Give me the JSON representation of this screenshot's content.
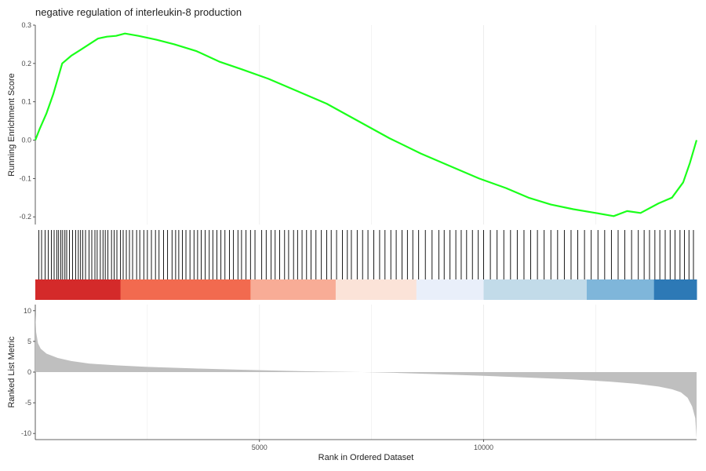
{
  "chart_data": {
    "type": "line",
    "title": "negative regulation of interleukin-8 production",
    "xlabel": "Rank in Ordered Dataset",
    "xlim": [
      0,
      14750
    ],
    "x_ticks": [
      5000,
      10000
    ],
    "grid": "vertical",
    "top_panel": {
      "ylabel": "Running Enrichment Score",
      "ylim": [
        -0.22,
        0.3
      ],
      "y_ticks": [
        0.3,
        0.2,
        0.1,
        0.0,
        -0.1,
        -0.2
      ],
      "y_tick_labels": [
        "0.3",
        "0.2",
        "0.1",
        "0.0",
        "-0.1",
        "-0.2"
      ],
      "line_color": "#1aff1a",
      "x": [
        0,
        100,
        250,
        400,
        600,
        800,
        1000,
        1200,
        1400,
        1600,
        1800,
        2000,
        2300,
        2700,
        3100,
        3600,
        4100,
        4600,
        5200,
        5800,
        6500,
        7200,
        7900,
        8600,
        9300,
        9900,
        10500,
        11000,
        11500,
        12000,
        12500,
        12900,
        13200,
        13500,
        13900,
        14200,
        14450,
        14600,
        14750
      ],
      "y": [
        0.0,
        0.03,
        0.07,
        0.12,
        0.2,
        0.22,
        0.235,
        0.25,
        0.265,
        0.27,
        0.272,
        0.278,
        0.272,
        0.262,
        0.25,
        0.232,
        0.205,
        0.185,
        0.16,
        0.13,
        0.095,
        0.05,
        0.005,
        -0.035,
        -0.07,
        -0.1,
        -0.125,
        -0.15,
        -0.168,
        -0.18,
        -0.19,
        -0.198,
        -0.185,
        -0.19,
        -0.165,
        -0.15,
        -0.11,
        -0.06,
        0.0
      ]
    },
    "gene_hits": {
      "bar_color": "#000000",
      "positions": [
        80,
        140,
        220,
        290,
        360,
        420,
        480,
        520,
        570,
        610,
        660,
        700,
        760,
        830,
        900,
        960,
        1010,
        1060,
        1120,
        1200,
        1260,
        1330,
        1380,
        1450,
        1510,
        1560,
        1620,
        1700,
        1760,
        1820,
        1900,
        1960,
        2030,
        2100,
        2170,
        2260,
        2330,
        2420,
        2500,
        2590,
        2680,
        2760,
        2860,
        2950,
        3050,
        3130,
        3200,
        3280,
        3360,
        3450,
        3540,
        3620,
        3700,
        3790,
        3880,
        3960,
        4050,
        4140,
        4230,
        4330,
        4420,
        4520,
        4600,
        4700,
        4800,
        4900,
        5050,
        5150,
        5260,
        5350,
        5450,
        5560,
        5650,
        5760,
        5850,
        5950,
        6050,
        6150,
        6260,
        6380,
        6500,
        6600,
        6720,
        6850,
        6960,
        7050,
        7180,
        7300,
        7420,
        7550,
        7680,
        7800,
        7930,
        8050,
        8180,
        8300,
        8420,
        8550,
        8700,
        8850,
        9000,
        9120,
        9250,
        9380,
        9500,
        9620,
        9750,
        9880,
        10000,
        10150,
        10300,
        10450,
        10600,
        10750,
        10900,
        11050,
        11200,
        11350,
        11500,
        11650,
        11800,
        11950,
        12100,
        12250,
        12400,
        12550,
        12700,
        12850,
        13000,
        13150,
        13300,
        13450,
        13580,
        13700,
        13820,
        13930,
        14050,
        14160,
        14270,
        14380,
        14480,
        14580,
        14680
      ]
    },
    "rank_gradient": [
      {
        "from": 0,
        "to": 1900,
        "color": "#d42a2a"
      },
      {
        "from": 1900,
        "to": 4800,
        "color": "#f26a4f"
      },
      {
        "from": 4800,
        "to": 6700,
        "color": "#f8ac96"
      },
      {
        "from": 6700,
        "to": 8500,
        "color": "#fbe3d8"
      },
      {
        "from": 8500,
        "to": 10000,
        "color": "#e9effa"
      },
      {
        "from": 10000,
        "to": 12300,
        "color": "#c2dbe9"
      },
      {
        "from": 12300,
        "to": 13800,
        "color": "#7fb6da"
      },
      {
        "from": 13800,
        "to": 14750,
        "color": "#2d79b6"
      }
    ],
    "bottom_panel": {
      "ylabel": "Ranked List Metric",
      "ylim": [
        -11,
        11
      ],
      "y_ticks": [
        10,
        5,
        0,
        -5,
        -10
      ],
      "y_tick_labels": [
        "10",
        "5",
        "0",
        "-5",
        "-10"
      ],
      "fill_color": "#bfbfbf",
      "x": [
        0,
        20,
        60,
        120,
        250,
        500,
        800,
        1200,
        1800,
        2500,
        3500,
        4500,
        5500,
        6500,
        7300,
        8000,
        9000,
        10000,
        11000,
        12000,
        12800,
        13400,
        13900,
        14200,
        14400,
        14550,
        14650,
        14720,
        14750
      ],
      "y": [
        9.5,
        6.5,
        4.7,
        3.8,
        3.0,
        2.3,
        1.8,
        1.4,
        1.1,
        0.85,
        0.6,
        0.4,
        0.22,
        0.08,
        0.0,
        -0.12,
        -0.35,
        -0.6,
        -0.9,
        -1.2,
        -1.55,
        -1.9,
        -2.35,
        -2.8,
        -3.3,
        -4.2,
        -5.6,
        -7.5,
        -10.8
      ]
    }
  }
}
